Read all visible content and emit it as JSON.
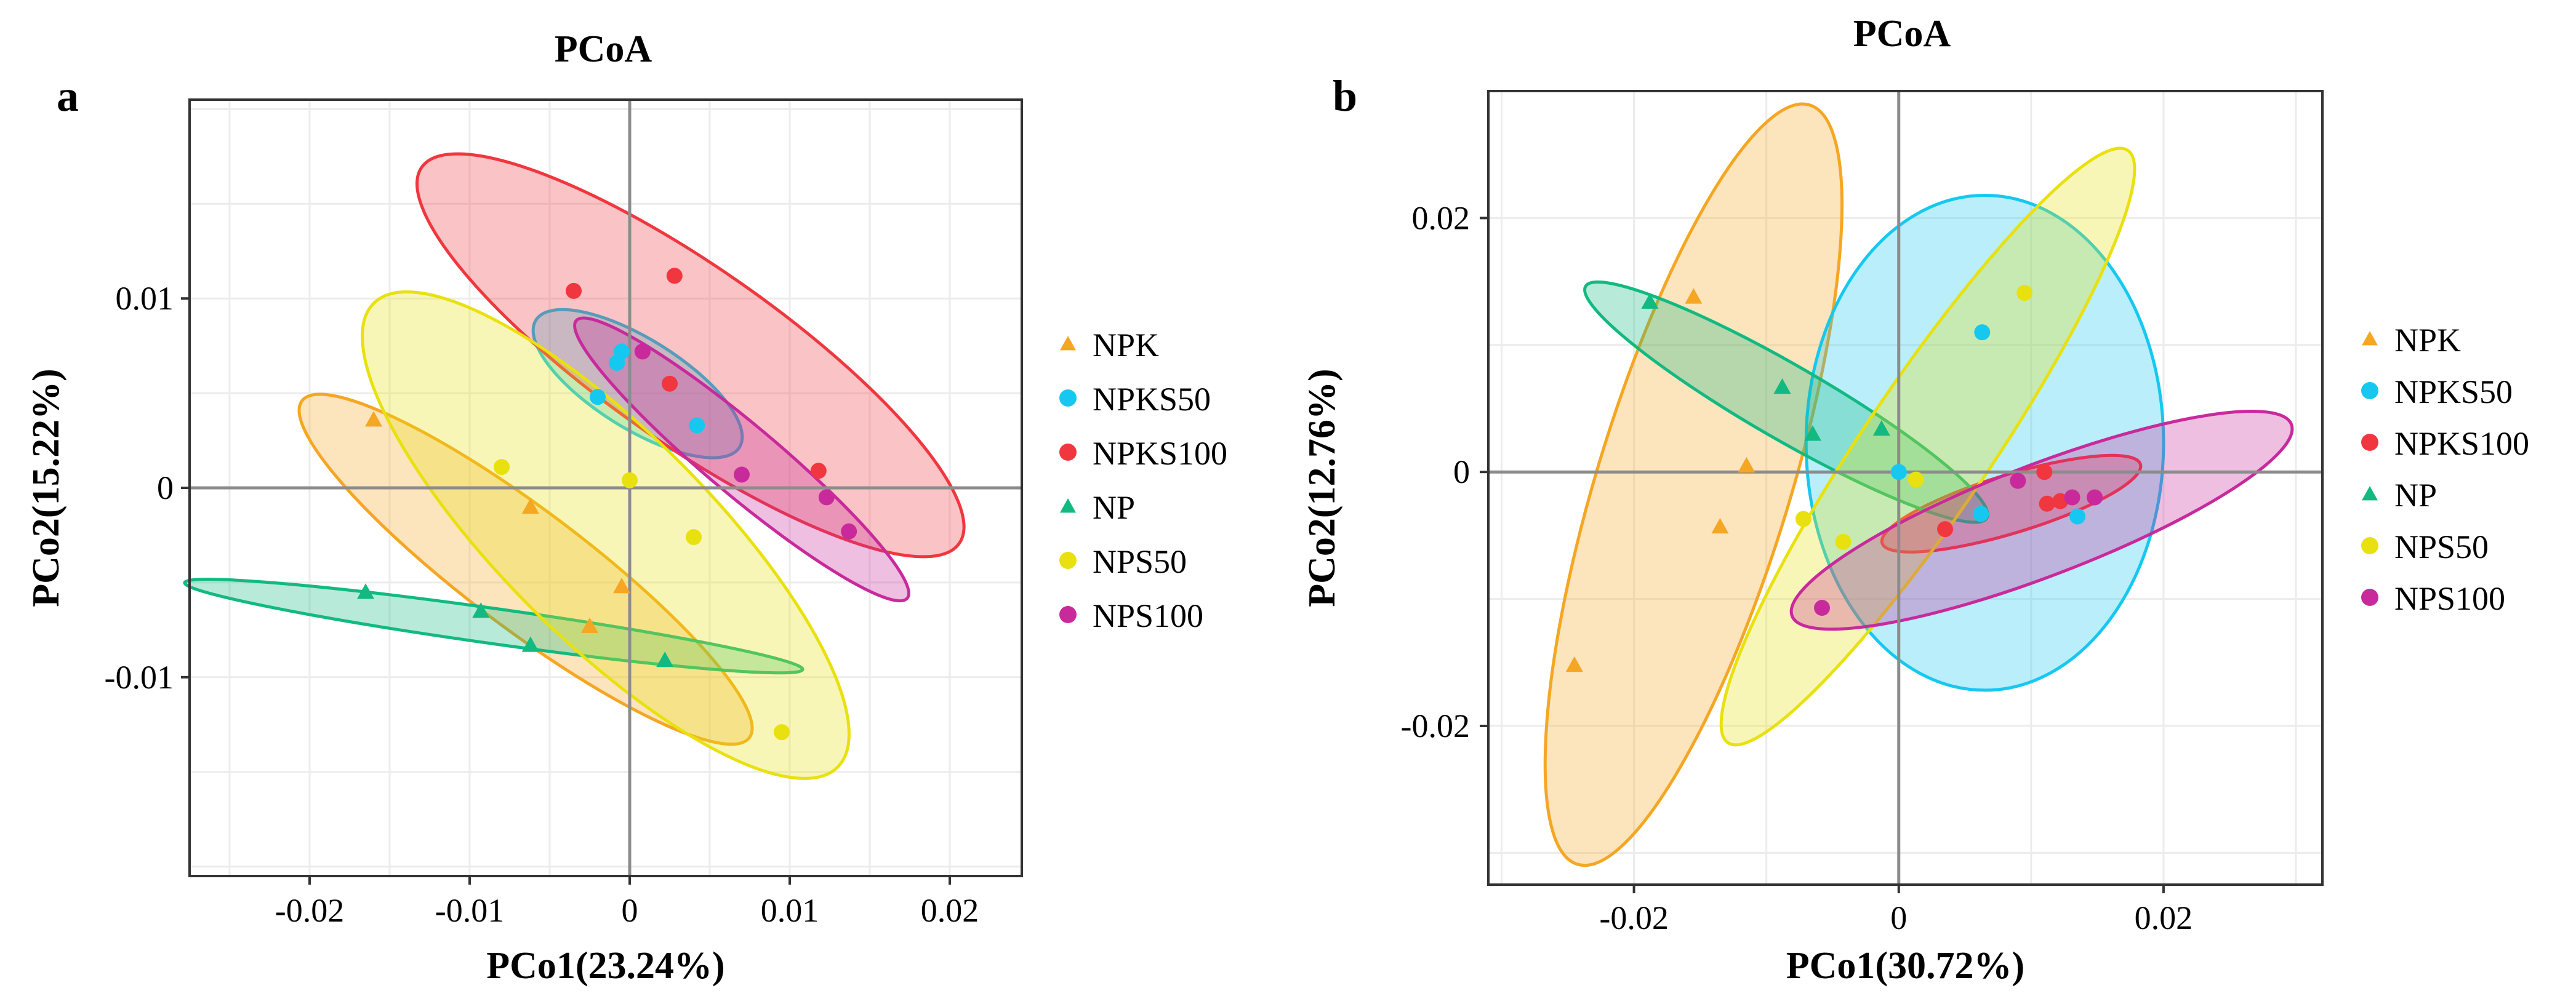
{
  "figure": {
    "groups": [
      {
        "name": "NPK",
        "color": "#F5A623",
        "marker": "triangle"
      },
      {
        "name": "NPKS50",
        "color": "#16C8F0",
        "marker": "circle"
      },
      {
        "name": "NPKS100",
        "color": "#F0373F",
        "marker": "circle"
      },
      {
        "name": "NP",
        "color": "#12B981",
        "marker": "triangle"
      },
      {
        "name": "NPS50",
        "color": "#E8E10F",
        "marker": "circle"
      },
      {
        "name": "NPS100",
        "color": "#C82A9C",
        "marker": "circle"
      }
    ]
  },
  "chart_data": [
    {
      "type": "scatter",
      "panel": "a",
      "title": "PCoA",
      "xlabel": "PCo1(23.24%)",
      "ylabel": "PCo2(15.22%)",
      "xlim": [
        -0.0275,
        0.0245
      ],
      "ylim": [
        -0.0205,
        0.0205
      ],
      "xticks": [
        -0.02,
        -0.01,
        0,
        0.01,
        0.02
      ],
      "xtick_labels": [
        "-0.02",
        "-0.01",
        "0",
        "0.01",
        "0.02"
      ],
      "yticks": [
        -0.01,
        0,
        0.01
      ],
      "ytick_labels": [
        "-0.01",
        "0",
        "0.01"
      ],
      "grid": true,
      "legend": "right",
      "series": [
        {
          "name": "NPK",
          "points": [
            [
              -0.016,
              0.0036
            ],
            [
              -0.0062,
              -0.001
            ],
            [
              -0.0005,
              -0.0052
            ],
            [
              -0.0025,
              -0.0073
            ]
          ],
          "ellipse": {
            "cx": -0.0065,
            "cy": -0.0043,
            "rx": 0.0175,
            "ry": 0.0037,
            "angle": -37
          }
        },
        {
          "name": "NPKS50",
          "points": [
            [
              -0.002,
              0.0048
            ],
            [
              -0.0008,
              0.0066
            ],
            [
              -0.0005,
              0.0072
            ],
            [
              0.0042,
              0.0033
            ]
          ],
          "ellipse": {
            "cx": 0.0005,
            "cy": 0.0055,
            "rx": 0.0075,
            "ry": 0.0028,
            "angle": -32
          }
        },
        {
          "name": "NPKS100",
          "points": [
            [
              -0.0035,
              0.0104
            ],
            [
              0.0028,
              0.0112
            ],
            [
              0.0025,
              0.0055
            ],
            [
              0.0118,
              0.0009
            ]
          ],
          "ellipse": {
            "cx": 0.0038,
            "cy": 0.007,
            "rx": 0.0205,
            "ry": 0.0055,
            "angle": -35
          }
        },
        {
          "name": "NP",
          "points": [
            [
              -0.0165,
              -0.0055
            ],
            [
              -0.0093,
              -0.0065
            ],
            [
              -0.0062,
              -0.0083
            ],
            [
              0.0022,
              -0.0091
            ]
          ],
          "ellipse": {
            "cx": -0.0085,
            "cy": -0.0073,
            "rx": 0.0195,
            "ry": 0.0011,
            "angle": -8
          }
        },
        {
          "name": "NPS50",
          "points": [
            [
              -0.008,
              0.0011
            ],
            [
              0.0,
              0.0004
            ],
            [
              0.004,
              -0.0026
            ],
            [
              0.0095,
              -0.0129
            ]
          ],
          "ellipse": {
            "cx": -0.0015,
            "cy": -0.0025,
            "rx": 0.0205,
            "ry": 0.0065,
            "angle": -45
          }
        },
        {
          "name": "NPS100",
          "points": [
            [
              0.0008,
              0.0072
            ],
            [
              0.007,
              0.0007
            ],
            [
              0.0123,
              -0.0005
            ],
            [
              0.0137,
              -0.0023
            ]
          ],
          "ellipse": {
            "cx": 0.007,
            "cy": 0.0015,
            "rx": 0.0135,
            "ry": 0.0022,
            "angle": -40
          }
        }
      ]
    },
    {
      "type": "scatter",
      "panel": "b",
      "title": "PCoA",
      "xlabel": "PCo1(30.72%)",
      "ylabel": "PCo2(12.76%)",
      "xlim": [
        -0.031,
        0.032
      ],
      "ylim": [
        -0.0325,
        0.03
      ],
      "xticks": [
        -0.02,
        0,
        0.02
      ],
      "xtick_labels": [
        "-0.02",
        "0",
        "0.02"
      ],
      "yticks": [
        -0.02,
        0,
        0.02
      ],
      "ytick_labels": [
        "-0.02",
        "0",
        "0.02"
      ],
      "grid": true,
      "legend": "right",
      "series": [
        {
          "name": "NPK",
          "points": [
            [
              -0.0245,
              -0.0152
            ],
            [
              -0.0135,
              -0.0043
            ],
            [
              -0.0115,
              0.0005
            ],
            [
              -0.0155,
              0.0138
            ]
          ],
          "ellipse": {
            "cx": -0.0155,
            "cy": -0.001,
            "rx": 0.03,
            "ry": 0.0073,
            "angle": 73
          }
        },
        {
          "name": "NPKS50",
          "points": [
            [
              0.0,
              0.0
            ],
            [
              0.0063,
              0.011
            ],
            [
              0.0062,
              -0.0033
            ],
            [
              0.0135,
              -0.0035
            ]
          ],
          "ellipse": {
            "cx": 0.0065,
            "cy": 0.0023,
            "rx": 0.0135,
            "ry": 0.0187,
            "angle": 0
          }
        },
        {
          "name": "NPKS100",
          "points": [
            [
              0.0035,
              -0.0045
            ],
            [
              0.011,
              0.0
            ],
            [
              0.0112,
              -0.0025
            ],
            [
              0.0122,
              -0.0023
            ]
          ],
          "ellipse": {
            "cx": 0.0085,
            "cy": -0.0025,
            "rx": 0.0102,
            "ry": 0.0022,
            "angle": 17
          }
        },
        {
          "name": "NP",
          "points": [
            [
              -0.0188,
              0.0134
            ],
            [
              -0.0088,
              0.0067
            ],
            [
              -0.0065,
              0.003
            ],
            [
              -0.0013,
              0.0034
            ]
          ],
          "ellipse": {
            "cx": -0.0085,
            "cy": 0.0055,
            "rx": 0.0175,
            "ry": 0.0028,
            "angle": -30
          }
        },
        {
          "name": "NPS50",
          "points": [
            [
              -0.0072,
              -0.0037
            ],
            [
              -0.0042,
              -0.0055
            ],
            [
              0.0013,
              -0.0006
            ],
            [
              0.0095,
              0.0141
            ]
          ],
          "ellipse": {
            "cx": 0.0022,
            "cy": 0.002,
            "rx": 0.027,
            "ry": 0.0048,
            "angle": 56
          }
        },
        {
          "name": "NPS100",
          "points": [
            [
              -0.0058,
              -0.0107
            ],
            [
              0.009,
              -0.0007
            ],
            [
              0.0131,
              -0.002
            ],
            [
              0.0148,
              -0.002
            ]
          ],
          "ellipse": {
            "cx": 0.0108,
            "cy": -0.0038,
            "rx": 0.0202,
            "ry": 0.0042,
            "angle": 21
          }
        }
      ]
    }
  ]
}
